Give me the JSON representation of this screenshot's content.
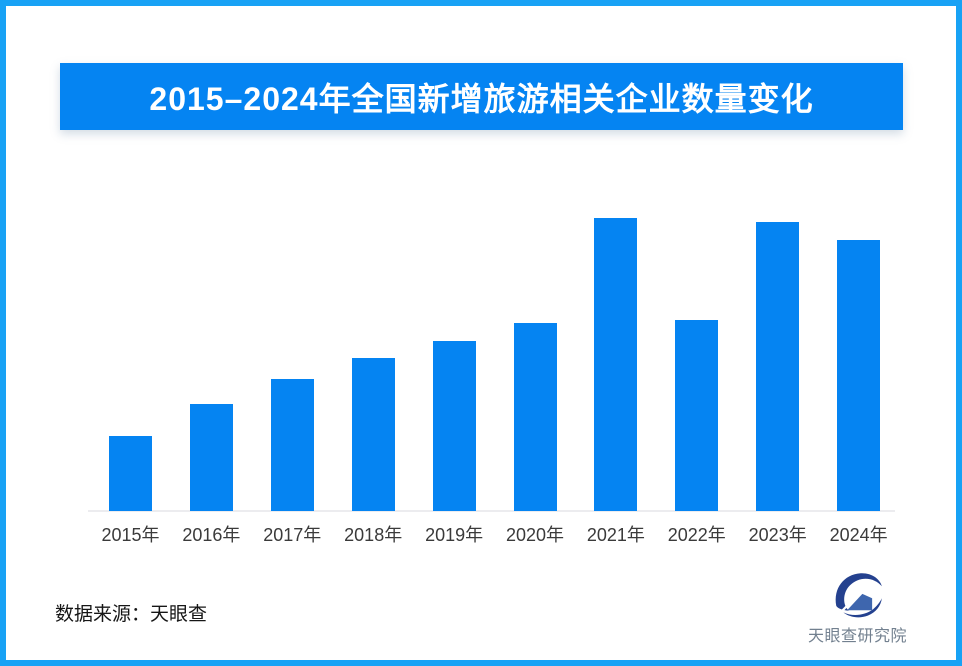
{
  "banner": {
    "title": "2015–2024年全国新增旅游相关企业数量变化"
  },
  "chart_data": {
    "type": "bar",
    "title": "2015–2024年全国新增旅游相关企业数量变化",
    "categories": [
      "2015年",
      "2016年",
      "2017年",
      "2018年",
      "2019年",
      "2020年",
      "2021年",
      "2022年",
      "2023年",
      "2024年"
    ],
    "values": [
      25.6,
      36.5,
      45.1,
      52.2,
      58.0,
      64.2,
      100.0,
      65.2,
      98.6,
      92.5
    ],
    "value_unit": "relative bar height, tallest bar (2021年) = 100; chart displays no numeric y-axis or data labels",
    "xlabel": "",
    "ylabel": "",
    "grid": false,
    "legend": false,
    "bar_color": "#0584F2",
    "axis_color": "#ECECEF"
  },
  "footer": {
    "source_label": "数据来源：天眼查",
    "logo_text": "天眼查研究院"
  },
  "colors": {
    "brand_blue": "#0584F2",
    "frame_blue": "#18A2F5",
    "axis_gray": "#ECECEF",
    "logo_navy": "#24418F",
    "logo_blue": "#3E66AE",
    "logo_text_gray": "#72808F"
  }
}
